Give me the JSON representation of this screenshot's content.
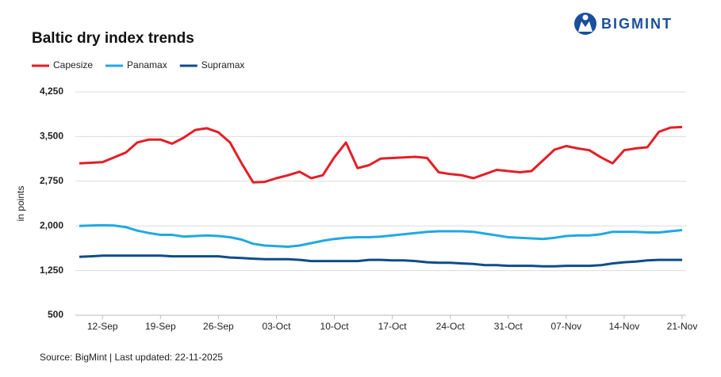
{
  "logo": "BIGMINT",
  "chart_data": {
    "type": "line",
    "title": "Baltic dry index trends",
    "y_label": "in points",
    "source": "Source: BigMint | Last updated: 22-11-2025",
    "categories": [
      null,
      null,
      "12-Sep",
      null,
      null,
      null,
      null,
      "19-Sep",
      null,
      null,
      null,
      null,
      "26-Sep",
      null,
      null,
      null,
      null,
      "03-Oct",
      null,
      null,
      null,
      null,
      "10-Oct",
      null,
      null,
      null,
      null,
      "17-Oct",
      null,
      null,
      null,
      null,
      "24-Oct",
      null,
      null,
      null,
      null,
      "31-Oct",
      null,
      null,
      null,
      null,
      "07-Nov",
      null,
      null,
      null,
      null,
      "14-Nov",
      null,
      null,
      null,
      null,
      "21-Nov"
    ],
    "series": [
      {
        "name": "Capesize",
        "color": "#e41e26",
        "values": [
          3050,
          3060,
          3070,
          3150,
          3230,
          3400,
          3450,
          3450,
          3380,
          3480,
          3610,
          3640,
          3570,
          3400,
          3050,
          2730,
          2740,
          2800,
          2850,
          2910,
          2800,
          2850,
          3150,
          3400,
          2970,
          3020,
          3130,
          3140,
          3150,
          3160,
          3140,
          2900,
          2870,
          2850,
          2800,
          2870,
          2940,
          2920,
          2900,
          2920,
          3100,
          3280,
          3340,
          3300,
          3270,
          3150,
          3050,
          3270,
          3300,
          3320,
          3580,
          3650,
          3660
        ]
      },
      {
        "name": "Panamax",
        "color": "#1fa9e1",
        "values": [
          2000,
          2005,
          2010,
          2005,
          1980,
          1920,
          1880,
          1850,
          1850,
          1820,
          1830,
          1840,
          1830,
          1810,
          1770,
          1700,
          1670,
          1660,
          1650,
          1670,
          1710,
          1750,
          1780,
          1800,
          1810,
          1810,
          1820,
          1840,
          1860,
          1880,
          1900,
          1910,
          1910,
          1910,
          1900,
          1870,
          1840,
          1810,
          1800,
          1790,
          1780,
          1800,
          1830,
          1840,
          1840,
          1860,
          1900,
          1900,
          1900,
          1890,
          1890,
          1910,
          1930
        ]
      },
      {
        "name": "Supramax",
        "color": "#0f4c8a",
        "values": [
          1480,
          1490,
          1500,
          1500,
          1500,
          1500,
          1500,
          1500,
          1490,
          1490,
          1490,
          1490,
          1490,
          1470,
          1460,
          1450,
          1440,
          1440,
          1440,
          1430,
          1410,
          1410,
          1410,
          1410,
          1410,
          1430,
          1430,
          1420,
          1420,
          1410,
          1390,
          1380,
          1380,
          1370,
          1360,
          1340,
          1340,
          1330,
          1330,
          1330,
          1320,
          1320,
          1330,
          1330,
          1330,
          1340,
          1370,
          1390,
          1400,
          1420,
          1430,
          1430,
          1430
        ]
      }
    ],
    "ylim": [
      500,
      4250
    ],
    "yticks": [
      500,
      {
        "value": 1250,
        "label": "1,250"
      },
      {
        "value": 2000,
        "label": "2,000"
      },
      {
        "value": 2750,
        "label": "2,750"
      },
      {
        "value": 3500,
        "label": "3,500"
      },
      {
        "value": 4250,
        "label": "4,250"
      }
    ],
    "grid": true,
    "legend": "top-left"
  }
}
